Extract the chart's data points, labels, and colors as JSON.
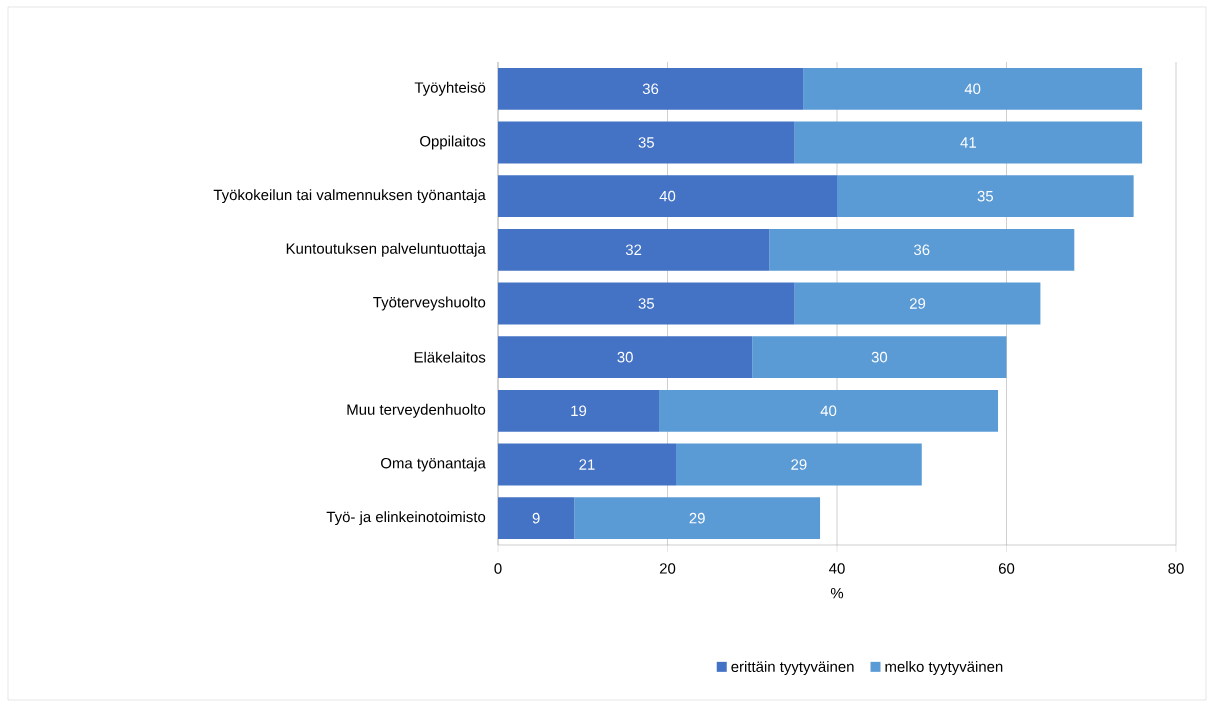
{
  "chart_data": {
    "type": "bar",
    "orientation": "horizontal",
    "stacked": true,
    "xlabel": "%",
    "categories": [
      "Työyhteisö",
      "Oppilaitos",
      "Työkokeilun tai valmennuksen työnantaja",
      "Kuntoutuksen palveluntuottaja",
      "Työterveyshuolto",
      "Eläkelaitos",
      "Muu terveydenhuolto",
      "Oma työnantaja",
      "Työ- ja elinkeinotoimisto"
    ],
    "series": [
      {
        "name": "erittäin tyytyväinen",
        "color": "#4472c4",
        "values": [
          36,
          35,
          40,
          32,
          35,
          30,
          19,
          21,
          9
        ]
      },
      {
        "name": "melko tyytyväinen",
        "color": "#5b9bd5",
        "values": [
          40,
          41,
          35,
          36,
          29,
          30,
          40,
          29,
          29
        ]
      }
    ],
    "xlim": [
      0,
      80
    ],
    "xticks": [
      0,
      20,
      40,
      60,
      80
    ],
    "grid": "x",
    "legend": "bottom",
    "data_labels": true
  }
}
